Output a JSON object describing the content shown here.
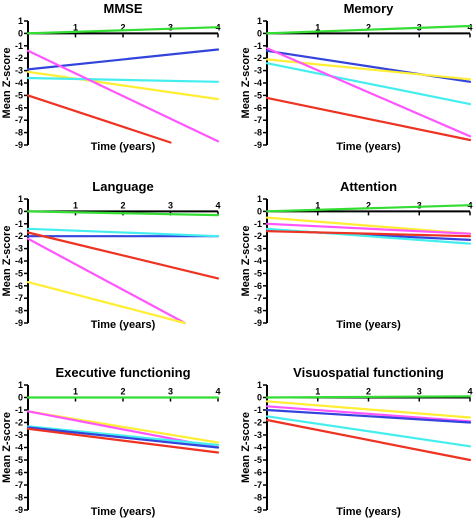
{
  "chart_data": [
    {
      "type": "line",
      "title": "MMSE",
      "xlabel": "Time (years)",
      "ylabel": "Mean Z-score",
      "xlim": [
        0,
        4
      ],
      "ylim": [
        -9,
        1
      ],
      "x_ticks": [
        "1",
        "2",
        "3",
        "4"
      ],
      "y_ticks": [
        "1",
        "0",
        "-1",
        "-2",
        "-3",
        "-4",
        "-5",
        "-6",
        "-7",
        "-8",
        "-9"
      ],
      "grid": false,
      "series": [
        {
          "color": "#33dd33",
          "x": [
            0,
            4
          ],
          "y": [
            0,
            0.5
          ]
        },
        {
          "color": "#3344dd",
          "x": [
            0,
            4
          ],
          "y": [
            -2.9,
            -1.3
          ]
        },
        {
          "color": "#ffee33",
          "x": [
            0,
            4
          ],
          "y": [
            -3.1,
            -5.3
          ]
        },
        {
          "color": "#44eeee",
          "x": [
            0,
            4
          ],
          "y": [
            -3.6,
            -3.9
          ]
        },
        {
          "color": "#ff55ff",
          "x": [
            0,
            4
          ],
          "y": [
            -1.4,
            -8.7
          ]
        },
        {
          "color": "#ee3322",
          "x": [
            0,
            3
          ],
          "y": [
            -5.0,
            -8.8
          ]
        }
      ]
    },
    {
      "type": "line",
      "title": "Memory",
      "xlabel": "Time (years)",
      "ylabel": "Mean Z-score",
      "xlim": [
        0,
        4
      ],
      "ylim": [
        -9,
        1
      ],
      "x_ticks": [
        "1",
        "2",
        "3",
        "4"
      ],
      "y_ticks": [
        "1",
        "0",
        "-1",
        "-2",
        "-3",
        "-4",
        "-5",
        "-6",
        "-7",
        "-8",
        "-9"
      ],
      "grid": false,
      "series": [
        {
          "color": "#33dd33",
          "x": [
            0,
            4
          ],
          "y": [
            0,
            0.6
          ]
        },
        {
          "color": "#3344dd",
          "x": [
            0,
            4
          ],
          "y": [
            -1.4,
            -3.9
          ]
        },
        {
          "color": "#ffee33",
          "x": [
            0,
            4
          ],
          "y": [
            -2.1,
            -3.7
          ]
        },
        {
          "color": "#44eeee",
          "x": [
            0,
            4
          ],
          "y": [
            -2.4,
            -5.7
          ]
        },
        {
          "color": "#ff55ff",
          "x": [
            0,
            4
          ],
          "y": [
            -1.2,
            -8.3
          ]
        },
        {
          "color": "#ee3322",
          "x": [
            0,
            4
          ],
          "y": [
            -5.2,
            -8.6
          ]
        }
      ]
    },
    {
      "type": "line",
      "title": "Language",
      "xlabel": "Time (years)",
      "ylabel": "Mean Z-score",
      "xlim": [
        0,
        4
      ],
      "ylim": [
        -9,
        1
      ],
      "x_ticks": [
        "1",
        "2",
        "3",
        "4"
      ],
      "y_ticks": [
        "1",
        "0",
        "-1",
        "-2",
        "-3",
        "-4",
        "-5",
        "-6",
        "-7",
        "-8",
        "-9"
      ],
      "grid": false,
      "series": [
        {
          "color": "#33dd33",
          "x": [
            0,
            4
          ],
          "y": [
            0,
            -0.3
          ]
        },
        {
          "color": "#3344dd",
          "x": [
            0,
            4
          ],
          "y": [
            -2.0,
            -2.0
          ]
        },
        {
          "color": "#44eeee",
          "x": [
            0,
            4
          ],
          "y": [
            -1.4,
            -2.0
          ]
        },
        {
          "color": "#ee3322",
          "x": [
            0,
            4
          ],
          "y": [
            -1.7,
            -5.4
          ]
        },
        {
          "color": "#ff55ff",
          "x": [
            0,
            3.3
          ],
          "y": [
            -2.2,
            -9.0
          ]
        },
        {
          "color": "#ffee33",
          "x": [
            0,
            3.3
          ],
          "y": [
            -5.7,
            -9.0
          ]
        }
      ]
    },
    {
      "type": "line",
      "title": "Attention",
      "xlabel": "Time (years)",
      "ylabel": "Mean Z-score",
      "xlim": [
        0,
        4
      ],
      "ylim": [
        -9,
        1
      ],
      "x_ticks": [
        "1",
        "2",
        "3",
        "4"
      ],
      "y_ticks": [
        "1",
        "0",
        "-1",
        "-2",
        "-3",
        "-4",
        "-5",
        "-6",
        "-7",
        "-8",
        "-9"
      ],
      "grid": false,
      "series": [
        {
          "color": "#33dd33",
          "x": [
            0,
            4
          ],
          "y": [
            0,
            0.5
          ]
        },
        {
          "color": "#ffee33",
          "x": [
            0,
            4
          ],
          "y": [
            -0.5,
            -1.8
          ]
        },
        {
          "color": "#ff55ff",
          "x": [
            0,
            4
          ],
          "y": [
            -1.0,
            -1.8
          ]
        },
        {
          "color": "#3344dd",
          "x": [
            0,
            4
          ],
          "y": [
            -1.5,
            -2.3
          ]
        },
        {
          "color": "#44eeee",
          "x": [
            0,
            4
          ],
          "y": [
            -1.4,
            -2.6
          ]
        },
        {
          "color": "#ee3322",
          "x": [
            0,
            4
          ],
          "y": [
            -1.6,
            -2.0
          ]
        }
      ]
    },
    {
      "type": "line",
      "title": "Executive functioning",
      "xlabel": "Time (years)",
      "ylabel": "Mean Z-score",
      "xlim": [
        0,
        4
      ],
      "ylim": [
        -9,
        1
      ],
      "x_ticks": [
        "1",
        "2",
        "3",
        "4"
      ],
      "y_ticks": [
        "1",
        "0",
        "-1",
        "-2",
        "-3",
        "-4",
        "-5",
        "-6",
        "-7",
        "-8",
        "-9"
      ],
      "grid": false,
      "series": [
        {
          "color": "#33dd33",
          "x": [
            0,
            4
          ],
          "y": [
            0,
            0
          ]
        },
        {
          "color": "#ffee33",
          "x": [
            0,
            4
          ],
          "y": [
            -1.1,
            -3.6
          ]
        },
        {
          "color": "#ff55ff",
          "x": [
            0,
            4
          ],
          "y": [
            -1.1,
            -4.0
          ]
        },
        {
          "color": "#44eeee",
          "x": [
            0,
            4
          ],
          "y": [
            -2.3,
            -3.8
          ]
        },
        {
          "color": "#3344dd",
          "x": [
            0,
            4
          ],
          "y": [
            -2.4,
            -4.0
          ]
        },
        {
          "color": "#ee3322",
          "x": [
            0,
            4
          ],
          "y": [
            -2.5,
            -4.4
          ]
        }
      ]
    },
    {
      "type": "line",
      "title": "Visuospatial functioning",
      "xlabel": "Time (years)",
      "ylabel": "Mean Z-score",
      "xlim": [
        0,
        4
      ],
      "ylim": [
        -9,
        1
      ],
      "x_ticks": [
        "1",
        "2",
        "3",
        "4"
      ],
      "y_ticks": [
        "1",
        "0",
        "-1",
        "-2",
        "-3",
        "-4",
        "-5",
        "-6",
        "-7",
        "-8",
        "-9"
      ],
      "grid": false,
      "series": [
        {
          "color": "#33dd33",
          "x": [
            0,
            4
          ],
          "y": [
            0,
            0.1
          ]
        },
        {
          "color": "#ffee33",
          "x": [
            0,
            4
          ],
          "y": [
            -0.3,
            -1.6
          ]
        },
        {
          "color": "#ff55ff",
          "x": [
            0,
            4
          ],
          "y": [
            -0.7,
            -1.9
          ]
        },
        {
          "color": "#3344dd",
          "x": [
            0,
            4
          ],
          "y": [
            -1.0,
            -2.0
          ]
        },
        {
          "color": "#44eeee",
          "x": [
            0,
            4
          ],
          "y": [
            -1.5,
            -3.9
          ]
        },
        {
          "color": "#ee3322",
          "x": [
            0,
            4
          ],
          "y": [
            -1.8,
            -5.0
          ]
        }
      ]
    }
  ]
}
